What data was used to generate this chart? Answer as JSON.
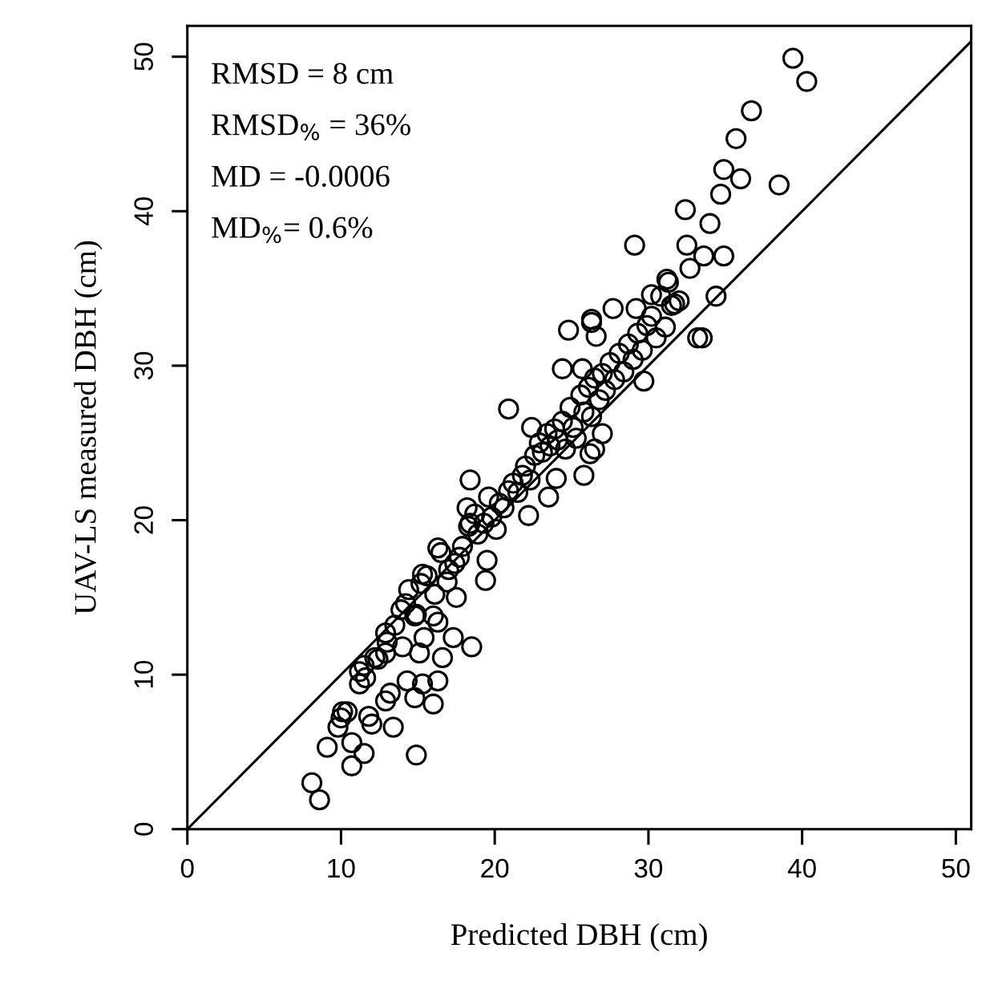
{
  "chart_data": {
    "type": "scatter",
    "xlabel": "Predicted DBH (cm)",
    "ylabel": "UAV-LS measured DBH (cm)",
    "xlim": [
      0,
      51
    ],
    "ylim": [
      0,
      52
    ],
    "xticks": [
      0,
      10,
      20,
      30,
      40,
      50
    ],
    "yticks": [
      0,
      10,
      20,
      30,
      40,
      50
    ],
    "grid": false,
    "annotations": [
      "RMSD = 8 cm",
      "RMSD$_{%}$ = 36%",
      "MD = -0.0006",
      "MD$_{%}$= 0.6%"
    ],
    "series": [
      {
        "marker": "circle",
        "color": "#000000",
        "x": [
          8.1,
          8.6,
          9.1,
          10.7,
          11.5,
          10.7,
          14.9,
          10.1,
          9.8,
          12.0,
          13.4,
          11.8,
          14.8,
          16.0,
          12.9,
          13.2,
          14.3,
          11.2,
          12.2,
          11.5,
          12.9,
          15.3,
          16.3,
          18.5,
          16.6,
          15.1,
          12.9,
          15.4,
          17.3,
          13.9,
          14.9,
          16.3,
          14.4,
          15.3,
          16.9,
          16.3,
          17.7,
          18.4,
          19.4,
          18.2,
          20.9,
          24.4,
          24.8,
          26.3,
          26.6,
          27.7,
          25.7,
          29.2,
          31.2,
          29.7,
          23.5,
          22.4,
          18.4,
          26.5,
          25.8,
          39.4,
          40.3,
          36.7,
          35.7,
          34.9,
          36.0,
          38.5,
          34.7,
          32.4,
          34.0,
          29.1,
          32.5,
          33.6,
          34.9,
          32.7,
          31.3,
          34.4,
          33.5,
          26.3,
          30.2,
          31.7,
          13.5,
          14.2,
          14.8,
          15.2,
          15.6,
          16.1,
          16.5,
          17.0,
          17.4,
          17.9,
          18.3,
          18.7,
          18.9,
          19.3,
          19.6,
          19.8,
          20.1,
          20.3,
          20.6,
          20.9,
          21.2,
          21.5,
          21.8,
          22.0,
          22.3,
          22.6,
          22.9,
          23.1,
          23.4,
          23.6,
          23.9,
          24.1,
          24.4,
          24.6,
          24.9,
          25.1,
          25.3,
          25.6,
          25.8,
          26.1,
          26.3,
          26.5,
          26.8,
          27.0,
          27.2,
          27.5,
          27.8,
          28.1,
          28.4,
          28.7,
          29.0,
          29.3,
          29.6,
          29.9,
          30.2,
          30.5,
          30.8,
          31.1,
          31.5,
          32.0,
          33.2,
          26.2,
          24.0,
          22.2,
          27.0,
          19.5,
          17.5,
          16.0,
          12.4,
          13.0,
          14.0,
          11.2,
          10.0,
          10.4,
          11.6
        ],
        "values": [
          3.0,
          1.9,
          5.3,
          4.1,
          4.9,
          5.6,
          4.8,
          7.6,
          6.6,
          6.8,
          6.6,
          7.3,
          8.5,
          8.1,
          8.3,
          8.8,
          9.6,
          9.4,
          11.1,
          10.6,
          11.4,
          9.4,
          9.6,
          11.8,
          11.1,
          11.4,
          12.7,
          12.4,
          12.4,
          14.2,
          13.9,
          13.4,
          15.5,
          16.5,
          16.0,
          18.2,
          17.6,
          19.8,
          16.1,
          20.8,
          27.2,
          29.8,
          32.3,
          33.0,
          31.9,
          33.7,
          29.8,
          33.7,
          35.6,
          29.0,
          21.5,
          26.0,
          22.6,
          24.6,
          22.9,
          49.9,
          48.4,
          46.5,
          44.7,
          42.7,
          42.1,
          41.7,
          41.1,
          40.1,
          39.2,
          37.8,
          37.8,
          37.1,
          37.1,
          36.3,
          35.4,
          34.5,
          31.8,
          32.8,
          34.6,
          34.0,
          13.2,
          14.6,
          13.8,
          15.9,
          16.4,
          15.2,
          17.9,
          16.8,
          17.2,
          18.3,
          19.6,
          20.4,
          19.1,
          19.8,
          21.5,
          20.2,
          19.4,
          21.1,
          20.8,
          21.9,
          22.4,
          21.8,
          22.9,
          23.5,
          22.6,
          24.2,
          25.0,
          24.4,
          25.6,
          24.8,
          25.9,
          25.2,
          26.4,
          24.6,
          27.3,
          26.0,
          25.3,
          28.1,
          27.0,
          28.6,
          26.7,
          29.2,
          27.8,
          29.5,
          28.4,
          30.2,
          29.1,
          30.8,
          29.6,
          31.4,
          30.4,
          32.1,
          31.0,
          32.6,
          33.2,
          31.8,
          34.5,
          32.5,
          33.9,
          34.2,
          31.8,
          24.3,
          22.7,
          20.3,
          25.6,
          17.4,
          15.0,
          13.8,
          11.0,
          12.1,
          11.8,
          10.2,
          7.2,
          7.6,
          9.8
        ]
      },
      {
        "type": "line",
        "color": "#000000",
        "marker": "none",
        "line_style": "solid",
        "x": [
          0,
          51
        ],
        "values": [
          0,
          51
        ]
      }
    ]
  }
}
